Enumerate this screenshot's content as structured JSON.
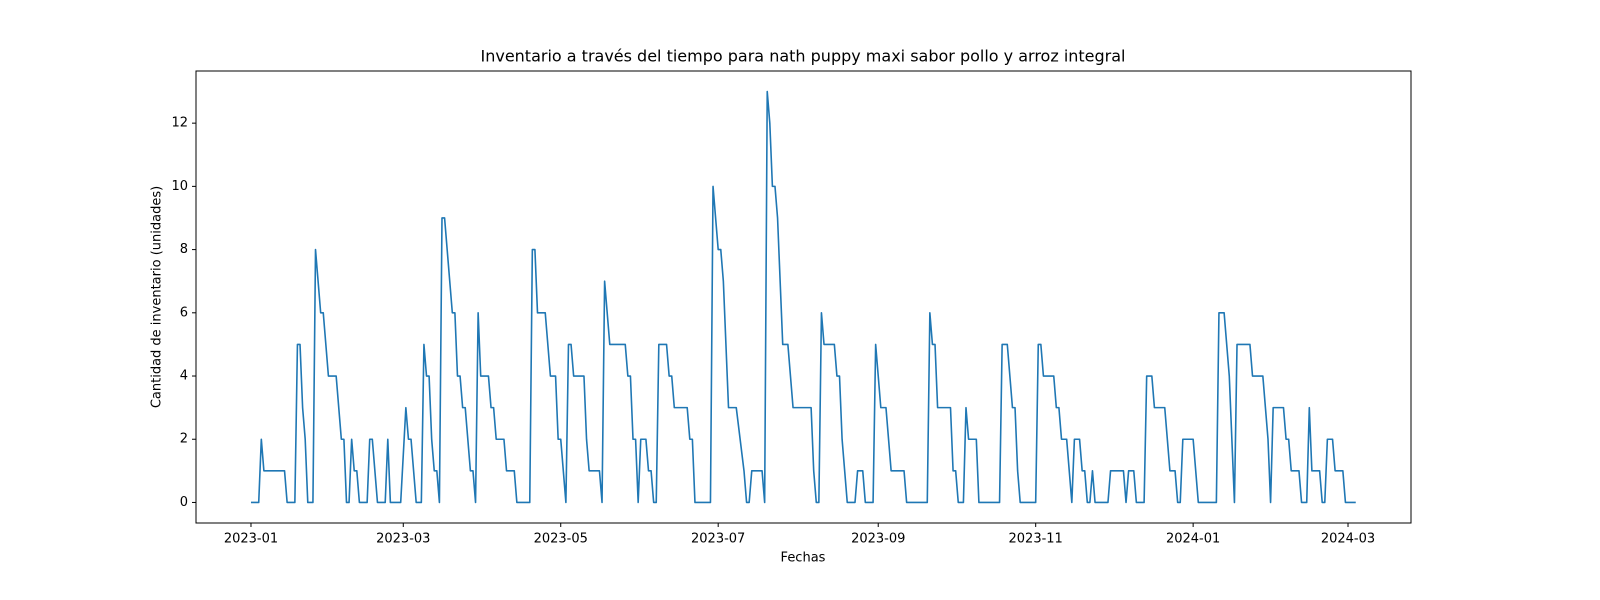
{
  "chart_data": {
    "type": "line",
    "title": "Inventario a través del tiempo para nath puppy maxi sabor pollo y arroz integral",
    "xlabel": "Fechas",
    "ylabel": "Cantidad de inventario (unidades)",
    "color": "#1f77b4",
    "xlim": [
      -21.3,
      449.4
    ],
    "ylim": [
      -0.65,
      13.65
    ],
    "xticks": [
      {
        "value": 0,
        "label": "2023-01"
      },
      {
        "value": 59,
        "label": "2023-03"
      },
      {
        "value": 120,
        "label": "2023-05"
      },
      {
        "value": 181,
        "label": "2023-07"
      },
      {
        "value": 243,
        "label": "2023-09"
      },
      {
        "value": 304,
        "label": "2023-11"
      },
      {
        "value": 365,
        "label": "2024-01"
      },
      {
        "value": 425,
        "label": "2024-03"
      }
    ],
    "yticks": [
      0,
      2,
      4,
      6,
      8,
      10,
      12
    ],
    "x": [
      0,
      3,
      4,
      5,
      13,
      14,
      17,
      18,
      19,
      20,
      21,
      22,
      24,
      25,
      27,
      28,
      30,
      33,
      35,
      36,
      37,
      38,
      39,
      40,
      41,
      42,
      45,
      46,
      47,
      49,
      52,
      53,
      54,
      58,
      60,
      61,
      62,
      64,
      66,
      67,
      68,
      69,
      70,
      71,
      72,
      73,
      74,
      75,
      78,
      79,
      80,
      81,
      82,
      83,
      85,
      86,
      87,
      88,
      89,
      92,
      93,
      94,
      95,
      98,
      99,
      102,
      103,
      108,
      109,
      110,
      111,
      114,
      116,
      118,
      119,
      120,
      122,
      123,
      124,
      125,
      129,
      130,
      131,
      135,
      136,
      137,
      139,
      145,
      146,
      147,
      148,
      149,
      150,
      151,
      153,
      154,
      155,
      156,
      157,
      158,
      161,
      162,
      163,
      164,
      169,
      170,
      171,
      172,
      178,
      179,
      181,
      182,
      183,
      185,
      188,
      191,
      192,
      193,
      194,
      198,
      199,
      200,
      201,
      202,
      203,
      204,
      206,
      208,
      210,
      217,
      218,
      219,
      220,
      221,
      222,
      226,
      227,
      228,
      229,
      231,
      234,
      235,
      237,
      238,
      241,
      242,
      244,
      246,
      248,
      253,
      254,
      262,
      263,
      264,
      265,
      266,
      271,
      272,
      273,
      274,
      276,
      277,
      278,
      281,
      282,
      290,
      291,
      293,
      295,
      296,
      297,
      298,
      304,
      305,
      306,
      307,
      311,
      312,
      313,
      314,
      316,
      318,
      319,
      321,
      322,
      323,
      324,
      325,
      326,
      327,
      332,
      333,
      338,
      339,
      340,
      342,
      343,
      346,
      347,
      349,
      350,
      354,
      356,
      358,
      359,
      360,
      361,
      365,
      367,
      374,
      375,
      377,
      379,
      381,
      382,
      387,
      388,
      392,
      394,
      395,
      396,
      400,
      401,
      402,
      403,
      406,
      407,
      409,
      410,
      411,
      414,
      415,
      416,
      417,
      419,
      420,
      423,
      424,
      428
    ],
    "values": [
      0,
      0,
      2,
      1,
      1,
      0,
      0,
      5,
      5,
      3,
      2,
      0,
      0,
      8,
      6,
      6,
      4,
      4,
      2,
      2,
      0,
      0,
      2,
      1,
      1,
      0,
      0,
      2,
      2,
      0,
      0,
      2,
      0,
      0,
      3,
      2,
      2,
      0,
      0,
      5,
      4,
      4,
      2,
      1,
      1,
      0,
      9,
      9,
      6,
      6,
      4,
      4,
      3,
      3,
      1,
      1,
      0,
      6,
      4,
      4,
      3,
      3,
      2,
      2,
      1,
      1,
      0,
      0,
      8,
      8,
      6,
      6,
      4,
      4,
      2,
      2,
      0,
      5,
      5,
      4,
      4,
      2,
      1,
      1,
      0,
      7,
      5,
      5,
      4,
      4,
      2,
      2,
      0,
      2,
      2,
      1,
      1,
      0,
      0,
      5,
      5,
      4,
      4,
      3,
      3,
      2,
      2,
      0,
      0,
      10,
      8,
      8,
      7,
      3,
      3,
      1,
      0,
      0,
      1,
      1,
      0,
      13,
      12,
      10,
      10,
      9,
      5,
      5,
      3,
      3,
      1,
      0,
      0,
      6,
      5,
      5,
      4,
      4,
      2,
      0,
      0,
      1,
      1,
      0,
      0,
      5,
      3,
      3,
      1,
      1,
      0,
      0,
      6,
      5,
      5,
      3,
      3,
      1,
      1,
      0,
      0,
      3,
      2,
      2,
      0,
      0,
      5,
      5,
      3,
      3,
      1,
      0,
      0,
      5,
      5,
      4,
      4,
      3,
      3,
      2,
      2,
      0,
      2,
      2,
      1,
      1,
      0,
      0,
      1,
      0,
      0,
      1,
      1,
      0,
      1,
      1,
      0,
      0,
      4,
      4,
      3,
      3,
      1,
      1,
      0,
      0,
      2,
      2,
      0,
      0,
      6,
      6,
      4,
      0,
      5,
      5,
      4,
      4,
      2,
      0,
      3,
      3,
      2,
      2,
      1,
      1,
      0,
      0,
      3,
      1,
      1,
      0,
      0,
      2,
      2,
      1,
      1,
      0,
      0
    ]
  }
}
